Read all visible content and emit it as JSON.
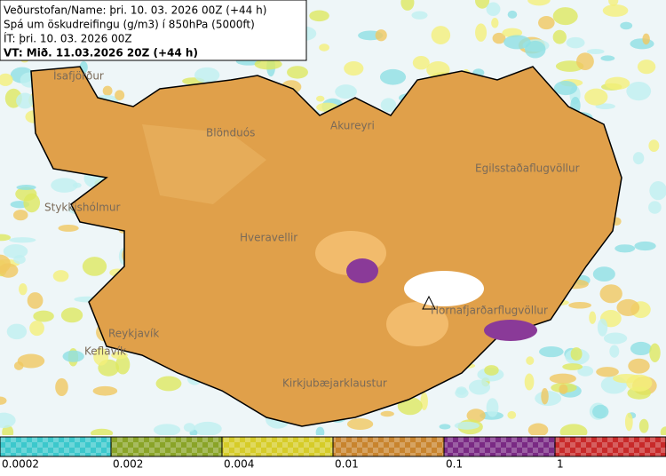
{
  "header": {
    "lines": [
      "Veðurstofan/Name: þri. 10. 03. 2026 00Z (+44 h)",
      "Spá um öskudreifingu (g/m3) í 850hPa (5000ft)",
      "ÍT: þri. 10. 03. 2026 00Z",
      "VT: Mið. 11.03.2026 20Z (+44 h)"
    ]
  },
  "places": [
    "Ísafjörður",
    "Blönduós",
    "Akureyri",
    "Egilsstaðaflugvöllur",
    "Stykkishólmur",
    "Hveravellir",
    "Hornafjarðarflugvöllur",
    "Reykjavík",
    "Keflavík",
    "Kirkjubæjarklaustur"
  ],
  "legend": {
    "labels": [
      "0.0002",
      "0.002",
      "0.004",
      "0.01",
      "0.1",
      "1"
    ],
    "colors": [
      "#3cc8cc",
      "#8aa428",
      "#d6cc28",
      "#c8842e",
      "#7a2a84",
      "#c82a2a"
    ]
  }
}
